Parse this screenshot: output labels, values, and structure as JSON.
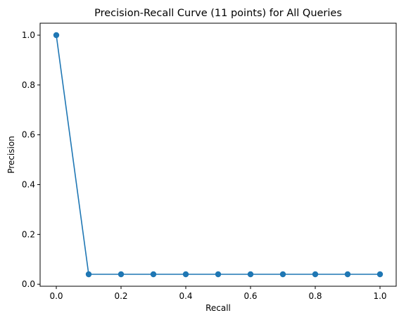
{
  "chart_data": {
    "type": "line",
    "title": "Precision-Recall Curve (11 points) for All Queries",
    "xlabel": "Recall",
    "ylabel": "Precision",
    "xlim": [
      -0.05,
      1.05
    ],
    "ylim": [
      -0.008,
      1.048
    ],
    "xticks": [
      0.0,
      0.2,
      0.4,
      0.6,
      0.8,
      1.0
    ],
    "xtick_labels": [
      "0.0",
      "0.2",
      "0.4",
      "0.6",
      "0.8",
      "1.0"
    ],
    "yticks": [
      0.0,
      0.2,
      0.4,
      0.6,
      0.8,
      1.0
    ],
    "ytick_labels": [
      "0.0",
      "0.2",
      "0.4",
      "0.6",
      "0.8",
      "1.0"
    ],
    "grid": false,
    "legend": "none",
    "series": [
      {
        "x": [
          0.0,
          0.1,
          0.2,
          0.3,
          0.4,
          0.5,
          0.6,
          0.7,
          0.8,
          0.9,
          1.0
        ],
        "y": [
          1.0,
          0.04,
          0.04,
          0.04,
          0.04,
          0.04,
          0.04,
          0.04,
          0.04,
          0.04,
          0.04
        ],
        "color": "#1f77b4",
        "marker": "circle"
      }
    ]
  }
}
